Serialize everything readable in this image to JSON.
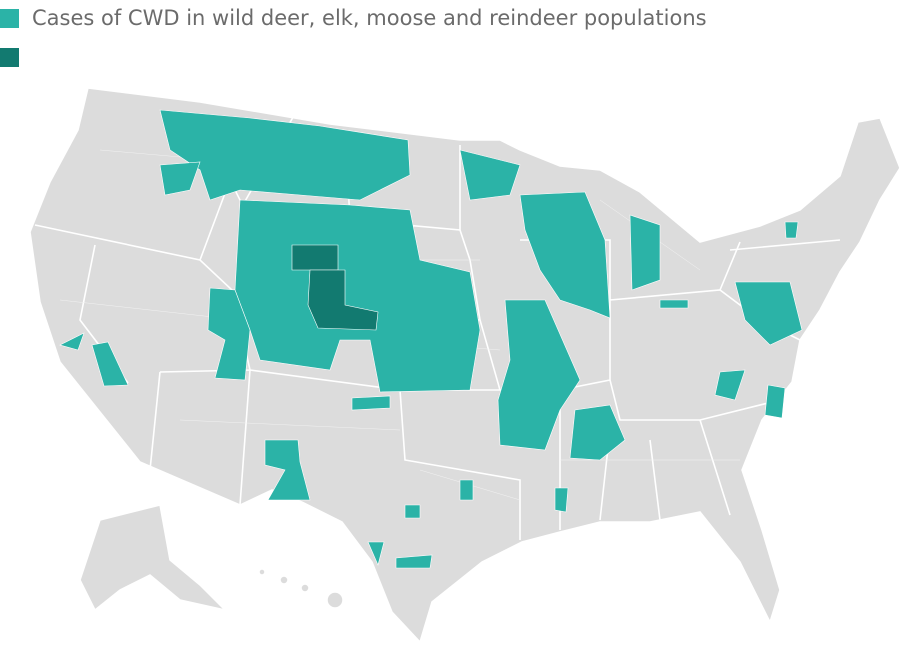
{
  "legend": [
    {
      "label": "Cases of CWD in wild deer, elk, moose and reindeer populations",
      "color": "#2bb3a7"
    },
    {
      "color": "#127a70"
    }
  ]
}
